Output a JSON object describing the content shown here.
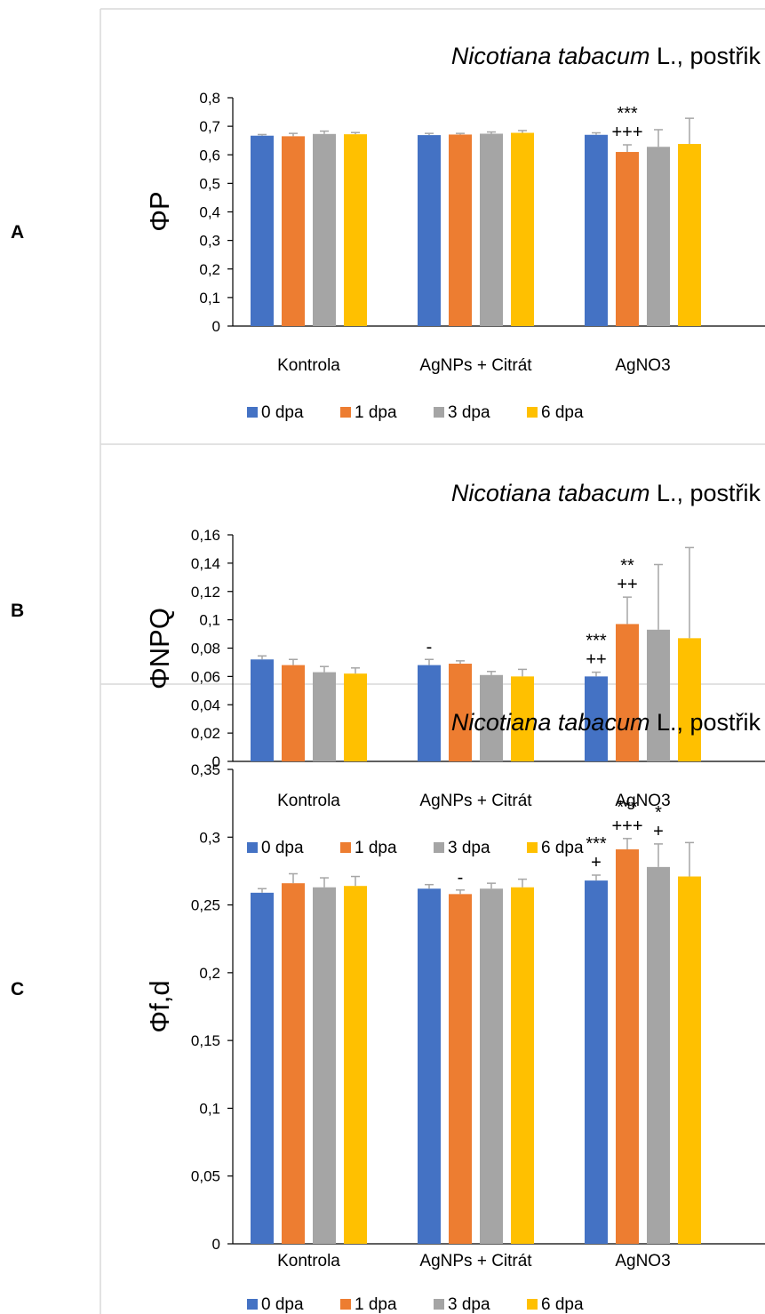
{
  "panel_labels": [
    "A",
    "B",
    "C"
  ],
  "colors": {
    "0 dpa": "#4472C4",
    "1 dpa": "#ED7D31",
    "3 dpa": "#A5A5A5",
    "6 dpa": "#FFC000",
    "error": "#A6A6A6",
    "axis": "#000000",
    "frame": "#D9D9D9"
  },
  "chart_data": [
    {
      "panel": "A",
      "type": "bar",
      "title_italic": "Nicotiana tabacum",
      "title_rest": " L., postřik",
      "ylabel": "ΦP",
      "xlabel": "",
      "ylim": [
        0,
        0.8
      ],
      "yticks": [
        "0",
        "0,1",
        "0,2",
        "0,3",
        "0,4",
        "0,5",
        "0,6",
        "0,7",
        "0,8"
      ],
      "categories": [
        "Kontrola",
        "AgNPs + Citrát",
        "AgNO3"
      ],
      "legend_position": "bottom",
      "series": [
        {
          "name": "0 dpa",
          "values": [
            0.667,
            0.669,
            0.67
          ],
          "errors": [
            0.004,
            0.006,
            0.007
          ]
        },
        {
          "name": "1 dpa",
          "values": [
            0.665,
            0.671,
            0.61
          ],
          "errors": [
            0.01,
            0.004,
            0.025
          ]
        },
        {
          "name": "3 dpa",
          "values": [
            0.673,
            0.674,
            0.628
          ],
          "errors": [
            0.01,
            0.006,
            0.06
          ]
        },
        {
          "name": "6 dpa",
          "values": [
            0.672,
            0.677,
            0.638
          ],
          "errors": [
            0.006,
            0.008,
            0.09
          ]
        }
      ],
      "annotations": [
        {
          "category": 2,
          "series": 1,
          "lines": [
            "***",
            "+++"
          ]
        }
      ]
    },
    {
      "panel": "B",
      "type": "bar",
      "title_italic": "Nicotiana tabacum",
      "title_rest": " L., postřik",
      "ylabel": "ΦNPQ",
      "xlabel": "",
      "ylim": [
        0,
        0.16
      ],
      "yticks": [
        "0",
        "0,02",
        "0,04",
        "0,06",
        "0,08",
        "0,1",
        "0,12",
        "0,14",
        "0,16"
      ],
      "categories": [
        "Kontrola",
        "AgNPs + Citrát",
        "AgNO3"
      ],
      "legend_position": "bottom",
      "series": [
        {
          "name": "0 dpa",
          "values": [
            0.072,
            0.068,
            0.06
          ],
          "errors": [
            0.0025,
            0.004,
            0.003
          ]
        },
        {
          "name": "1 dpa",
          "values": [
            0.068,
            0.069,
            0.097
          ],
          "errors": [
            0.004,
            0.002,
            0.019
          ]
        },
        {
          "name": "3 dpa",
          "values": [
            0.063,
            0.061,
            0.093
          ],
          "errors": [
            0.004,
            0.0025,
            0.046
          ]
        },
        {
          "name": "6 dpa",
          "values": [
            0.062,
            0.06,
            0.087
          ],
          "errors": [
            0.004,
            0.005,
            0.064
          ]
        }
      ],
      "annotations": [
        {
          "category": 1,
          "series": 0,
          "lines": [
            "-"
          ]
        },
        {
          "category": 2,
          "series": 0,
          "lines": [
            "***",
            "++"
          ]
        },
        {
          "category": 2,
          "series": 1,
          "lines": [
            "**",
            "++"
          ]
        }
      ]
    },
    {
      "panel": "C",
      "type": "bar",
      "title_italic": "Nicotiana tabacum",
      "title_rest": " L., postřik",
      "ylabel": "Φf,d",
      "xlabel": "",
      "ylim": [
        0,
        0.35
      ],
      "yticks": [
        "0",
        "0,05",
        "0,1",
        "0,15",
        "0,2",
        "0,25",
        "0,3",
        "0,35"
      ],
      "categories": [
        "Kontrola",
        "AgNPs + Citrát",
        "AgNO3"
      ],
      "legend_position": "bottom",
      "series": [
        {
          "name": "0 dpa",
          "values": [
            0.259,
            0.262,
            0.268
          ],
          "errors": [
            0.003,
            0.003,
            0.004
          ]
        },
        {
          "name": "1 dpa",
          "values": [
            0.266,
            0.258,
            0.291
          ],
          "errors": [
            0.007,
            0.003,
            0.008
          ]
        },
        {
          "name": "3 dpa",
          "values": [
            0.263,
            0.262,
            0.278
          ],
          "errors": [
            0.007,
            0.004,
            0.017
          ]
        },
        {
          "name": "6 dpa",
          "values": [
            0.264,
            0.263,
            0.271
          ],
          "errors": [
            0.007,
            0.006,
            0.025
          ]
        }
      ],
      "annotations": [
        {
          "category": 1,
          "series": 1,
          "lines": [
            "-"
          ]
        },
        {
          "category": 2,
          "series": 0,
          "lines": [
            "***",
            "+"
          ]
        },
        {
          "category": 2,
          "series": 1,
          "lines": [
            "***",
            "+++"
          ]
        },
        {
          "category": 2,
          "series": 2,
          "lines": [
            "*",
            "+"
          ]
        }
      ]
    }
  ]
}
